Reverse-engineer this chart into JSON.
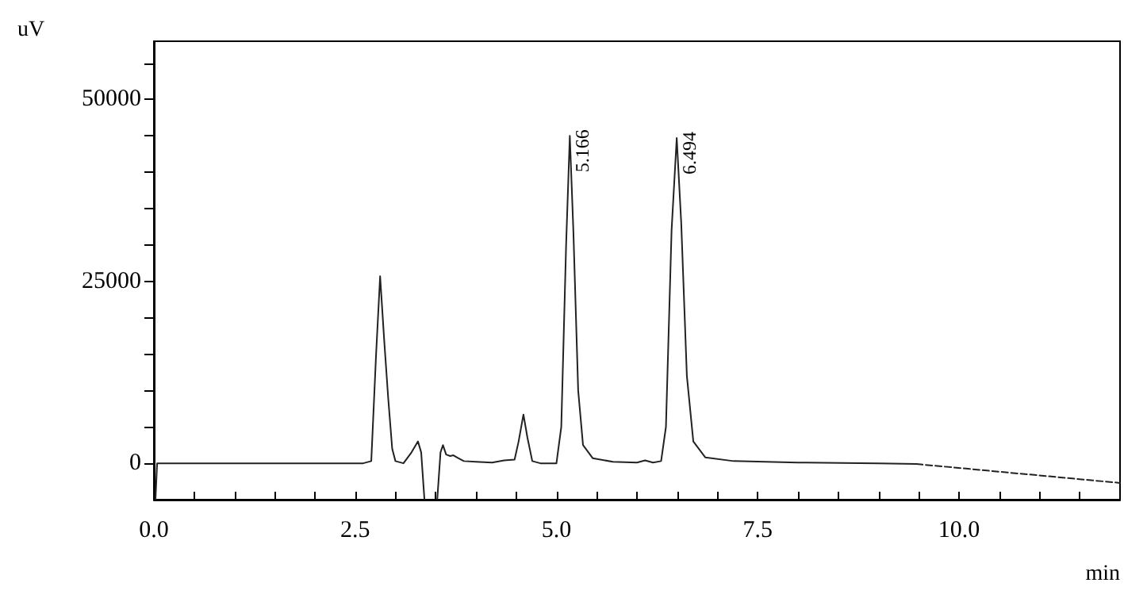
{
  "chart_data": {
    "type": "line",
    "xlabel": "min",
    "ylabel": "uV",
    "xlim": [
      0,
      12
    ],
    "ylim": [
      -5000,
      58000
    ],
    "xticks": [
      {
        "value": 0,
        "label": "0.0"
      },
      {
        "value": 0.5,
        "label": null
      },
      {
        "value": 1,
        "label": null
      },
      {
        "value": 1.5,
        "label": null
      },
      {
        "value": 2,
        "label": null
      },
      {
        "value": 2.5,
        "label": "2.5"
      },
      {
        "value": 3,
        "label": null
      },
      {
        "value": 3.5,
        "label": null
      },
      {
        "value": 4,
        "label": null
      },
      {
        "value": 4.5,
        "label": null
      },
      {
        "value": 5,
        "label": "5.0"
      },
      {
        "value": 5.5,
        "label": null
      },
      {
        "value": 6,
        "label": null
      },
      {
        "value": 6.5,
        "label": null
      },
      {
        "value": 7,
        "label": null
      },
      {
        "value": 7.5,
        "label": "7.5"
      },
      {
        "value": 8,
        "label": null
      },
      {
        "value": 8.5,
        "label": null
      },
      {
        "value": 9,
        "label": null
      },
      {
        "value": 9.5,
        "label": null
      },
      {
        "value": 10,
        "label": "10.0"
      },
      {
        "value": 10.5,
        "label": null
      },
      {
        "value": 11,
        "label": null
      },
      {
        "value": 11.5,
        "label": null
      }
    ],
    "yticks": [
      0,
      {
        "value": 5000,
        "label": null
      },
      {
        "value": 10000,
        "label": null
      },
      {
        "value": 15000,
        "label": null
      },
      {
        "value": 20000,
        "label": null
      },
      25000,
      {
        "value": 30000,
        "label": null
      },
      {
        "value": 35000,
        "label": null
      },
      {
        "value": 40000,
        "label": null
      },
      {
        "value": 45000,
        "label": null
      },
      50000,
      {
        "value": 55000,
        "label": null
      }
    ],
    "grid": false,
    "marker": "none",
    "annotations": [
      {
        "text": "5.166",
        "x": 5.166,
        "y": 45000
      },
      {
        "text": "6.494",
        "x": 6.494,
        "y": 44700
      }
    ],
    "series": [
      {
        "color": "#222222",
        "line_style": "solid",
        "x": [
          0.02,
          0.04,
          2.6,
          2.7,
          2.76,
          2.81,
          2.86,
          2.91,
          2.96,
          3.0,
          3.1,
          3.2,
          3.28,
          3.32,
          3.36,
          3.44,
          3.52,
          3.56,
          3.59,
          3.63,
          3.68,
          3.72,
          3.78,
          3.85,
          4.0,
          4.2,
          4.35,
          4.48,
          4.53,
          4.59,
          4.64,
          4.7,
          4.8,
          5.0,
          5.06,
          5.12,
          5.166,
          5.21,
          5.27,
          5.33,
          5.45,
          5.7,
          6.0,
          6.1,
          6.2,
          6.3,
          6.36,
          6.43,
          6.494,
          6.55,
          6.62,
          6.7,
          6.85,
          7.2,
          8.0,
          9.0,
          9.47
        ],
        "values": [
          -4900,
          0,
          0,
          300,
          15000,
          25700,
          17000,
          9000,
          2000,
          300,
          0,
          1500,
          3000,
          1500,
          -4900,
          null,
          -4900,
          1500,
          2500,
          1200,
          1000,
          1100,
          700,
          300,
          200,
          100,
          400,
          500,
          3000,
          6700,
          3500,
          300,
          0,
          0,
          5000,
          30000,
          45000,
          32000,
          10000,
          2500,
          700,
          200,
          100,
          400,
          100,
          300,
          5000,
          32000,
          44700,
          33000,
          12000,
          3000,
          800,
          300,
          100,
          0,
          -100
        ]
      },
      {
        "color": "#222222",
        "line_style": "dashed",
        "x": [
          9.47,
          12
        ],
        "values": [
          -100,
          -2700
        ]
      }
    ]
  }
}
